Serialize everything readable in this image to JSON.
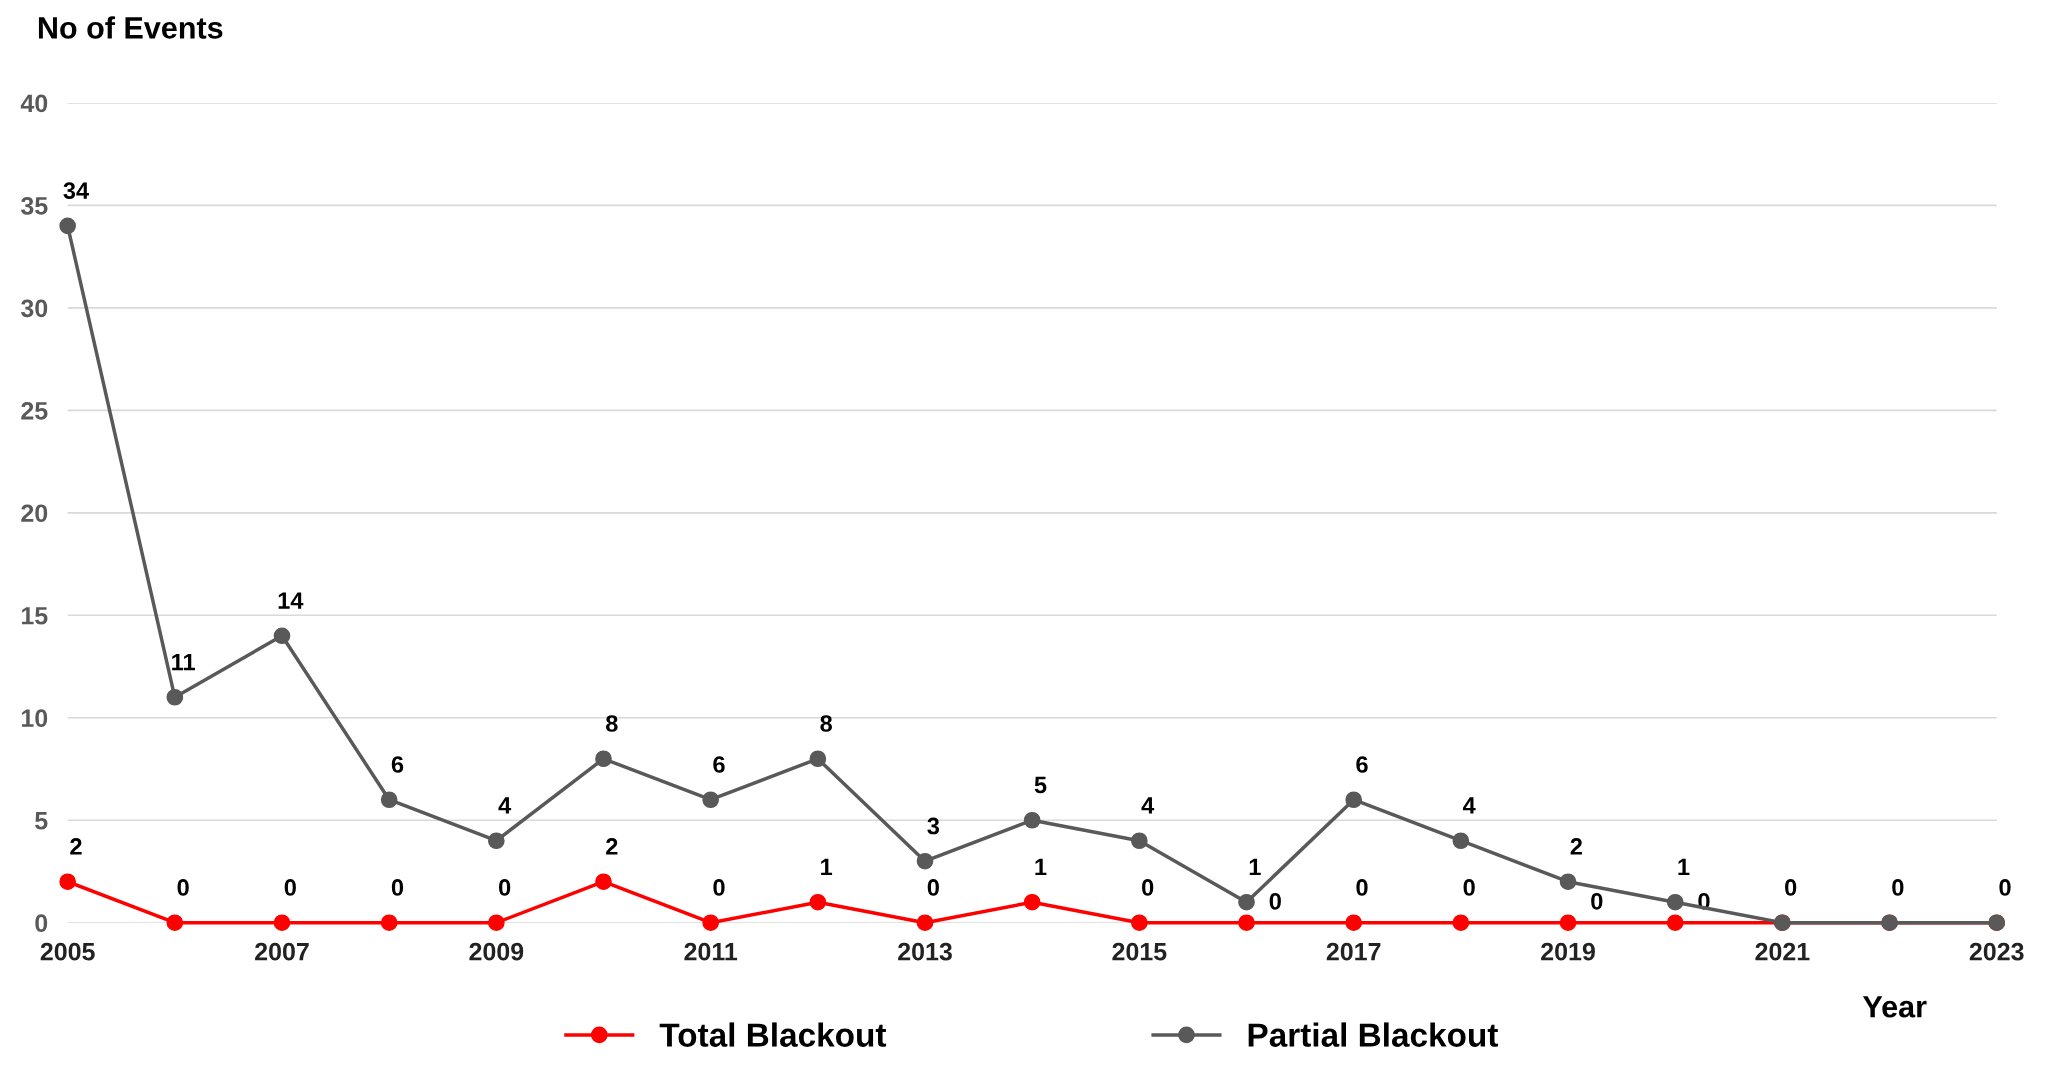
{
  "chart_data": {
    "type": "line",
    "ylabel": "No of Events",
    "xlabel": "Year",
    "x": [
      2005,
      2006,
      2007,
      2008,
      2009,
      2010,
      2011,
      2012,
      2013,
      2014,
      2015,
      2016,
      2017,
      2018,
      2019,
      2020,
      2021,
      2022,
      2023
    ],
    "series": [
      {
        "name": "Total Blackout",
        "color": "#ff0000",
        "values": [
          2,
          0,
          0,
          0,
          0,
          2,
          0,
          1,
          0,
          1,
          0,
          0,
          0,
          0,
          0,
          0,
          0,
          0,
          0
        ],
        "value_labels": [
          "2",
          "0",
          "0",
          "0",
          "0",
          "2",
          "0",
          "1",
          "0",
          "1",
          "0",
          "0",
          "0",
          "0",
          "0",
          "0",
          "0",
          "0",
          "0"
        ]
      },
      {
        "name": "Partial Blackout",
        "color": "#595959",
        "values": [
          34,
          11,
          14,
          6,
          4,
          8,
          6,
          8,
          3,
          5,
          4,
          1,
          6,
          4,
          2,
          1,
          0,
          0,
          0
        ],
        "value_labels": [
          "34",
          "11",
          "14",
          "6",
          "4",
          "8",
          "6",
          "8",
          "3",
          "5",
          "4",
          "1",
          "6",
          "4",
          "2",
          "1",
          null,
          null,
          null
        ]
      }
    ],
    "xlim": [
      2005,
      2023
    ],
    "xticks": [
      2005,
      2007,
      2009,
      2011,
      2013,
      2015,
      2017,
      2019,
      2021,
      2023
    ],
    "ylim": [
      0,
      40
    ],
    "yticks": [
      0,
      5,
      10,
      15,
      20,
      25,
      30,
      35,
      40
    ],
    "grid": "y",
    "legend": "bottom",
    "marker": "circle",
    "line_style": "solid"
  }
}
